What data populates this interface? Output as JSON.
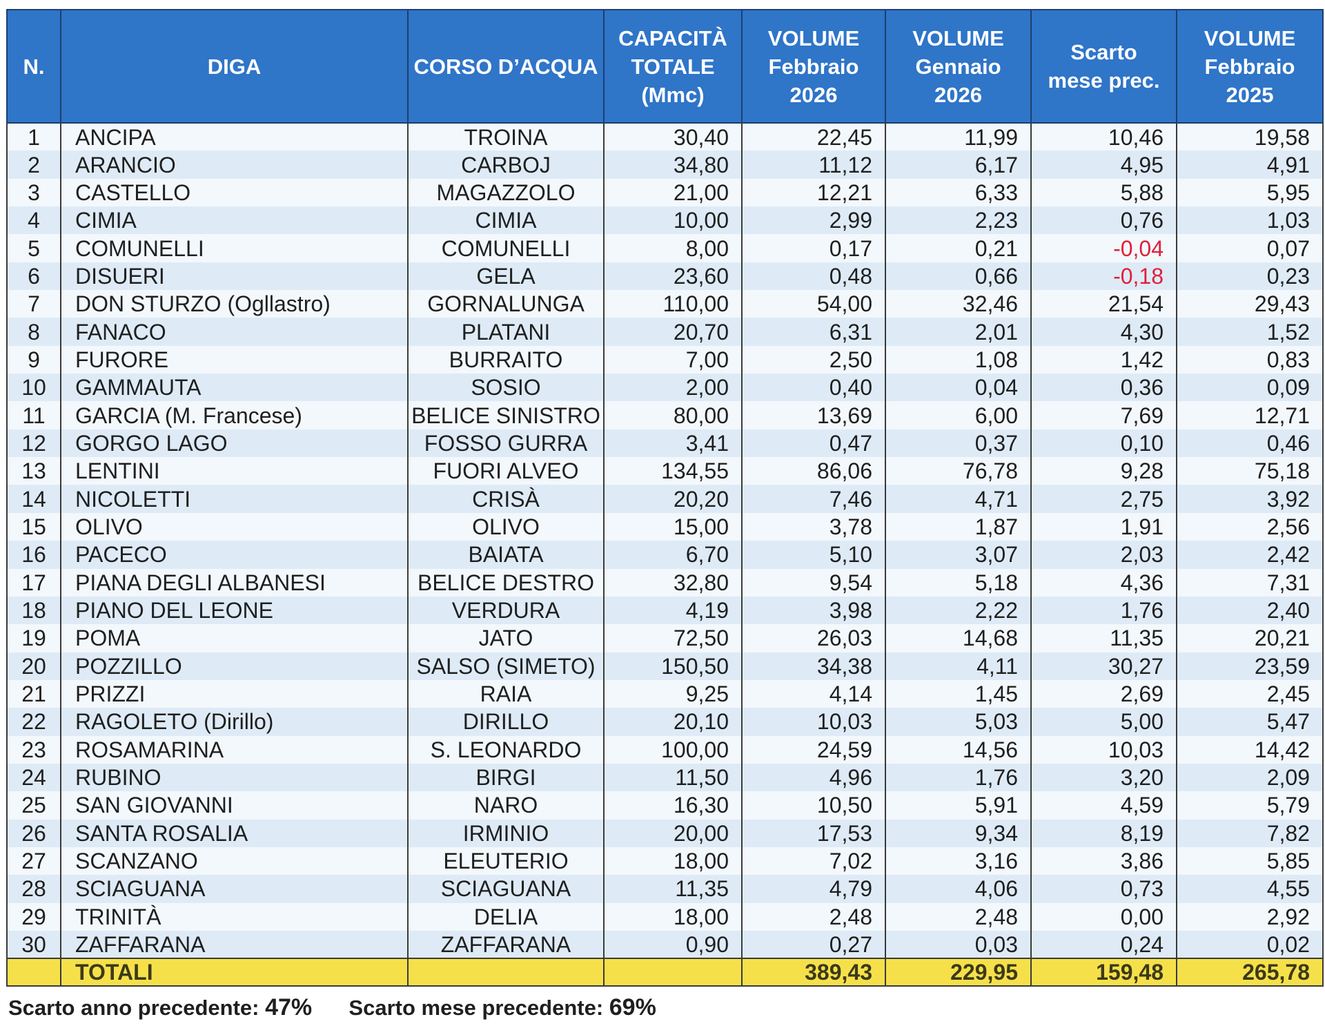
{
  "headers": {
    "n": "N.",
    "diga": "DIGA",
    "corso": "CORSO D’ACQUA",
    "capacita": [
      "CAPACITÀ",
      "TOTALE",
      "(Mmc)"
    ],
    "vol_feb_2026": [
      "VOLUME",
      "Febbraio",
      "2026"
    ],
    "vol_gen_2026": [
      "VOLUME",
      "Gennaio",
      "2026"
    ],
    "scarto": [
      "Scarto",
      "mese prec."
    ],
    "vol_feb_2025": [
      "VOLUME",
      "Febbraio",
      "2025"
    ]
  },
  "rows": [
    {
      "n": "1",
      "diga": "ANCIPA",
      "corso": "TROINA",
      "capacita": "30,40",
      "feb26": "22,45",
      "gen26": "11,99",
      "scarto": "10,46",
      "feb25": "19,58"
    },
    {
      "n": "2",
      "diga": "ARANCIO",
      "corso": "CARBOJ",
      "capacita": "34,80",
      "feb26": "11,12",
      "gen26": "6,17",
      "scarto": "4,95",
      "feb25": "4,91"
    },
    {
      "n": "3",
      "diga": "CASTELLO",
      "corso": "MAGAZZOLO",
      "capacita": "21,00",
      "feb26": "12,21",
      "gen26": "6,33",
      "scarto": "5,88",
      "feb25": "5,95"
    },
    {
      "n": "4",
      "diga": "CIMIA",
      "corso": "CIMIA",
      "capacita": "10,00",
      "feb26": "2,99",
      "gen26": "2,23",
      "scarto": "0,76",
      "feb25": "1,03"
    },
    {
      "n": "5",
      "diga": "COMUNELLI",
      "corso": "COMUNELLI",
      "capacita": "8,00",
      "feb26": "0,17",
      "gen26": "0,21",
      "scarto": "-0,04",
      "feb25": "0,07"
    },
    {
      "n": "6",
      "diga": "DISUERI",
      "corso": "GELA",
      "capacita": "23,60",
      "feb26": "0,48",
      "gen26": "0,66",
      "scarto": "-0,18",
      "feb25": "0,23"
    },
    {
      "n": "7",
      "diga": "DON STURZO (Ogllastro)",
      "corso": "GORNALUNGA",
      "capacita": "110,00",
      "feb26": "54,00",
      "gen26": "32,46",
      "scarto": "21,54",
      "feb25": "29,43"
    },
    {
      "n": "8",
      "diga": "FANACO",
      "corso": "PLATANI",
      "capacita": "20,70",
      "feb26": "6,31",
      "gen26": "2,01",
      "scarto": "4,30",
      "feb25": "1,52"
    },
    {
      "n": "9",
      "diga": "FURORE",
      "corso": "BURRAITO",
      "capacita": "7,00",
      "feb26": "2,50",
      "gen26": "1,08",
      "scarto": "1,42",
      "feb25": "0,83"
    },
    {
      "n": "10",
      "diga": "GAMMAUTA",
      "corso": "SOSIO",
      "capacita": "2,00",
      "feb26": "0,40",
      "gen26": "0,04",
      "scarto": "0,36",
      "feb25": "0,09"
    },
    {
      "n": "11",
      "diga": "GARCIA (M. Francese)",
      "corso": "BELICE SINISTRO",
      "capacita": "80,00",
      "feb26": "13,69",
      "gen26": "6,00",
      "scarto": "7,69",
      "feb25": "12,71"
    },
    {
      "n": "12",
      "diga": "GORGO LAGO",
      "corso": "FOSSO GURRA",
      "capacita": "3,41",
      "feb26": "0,47",
      "gen26": "0,37",
      "scarto": "0,10",
      "feb25": "0,46"
    },
    {
      "n": "13",
      "diga": "LENTINI",
      "corso": "FUORI ALVEO",
      "capacita": "134,55",
      "feb26": "86,06",
      "gen26": "76,78",
      "scarto": "9,28",
      "feb25": "75,18"
    },
    {
      "n": "14",
      "diga": "NICOLETTI",
      "corso": "CRISÀ",
      "capacita": "20,20",
      "feb26": "7,46",
      "gen26": "4,71",
      "scarto": "2,75",
      "feb25": "3,92"
    },
    {
      "n": "15",
      "diga": "OLIVO",
      "corso": "OLIVO",
      "capacita": "15,00",
      "feb26": "3,78",
      "gen26": "1,87",
      "scarto": "1,91",
      "feb25": "2,56"
    },
    {
      "n": "16",
      "diga": "PACECO",
      "corso": "BAIATA",
      "capacita": "6,70",
      "feb26": "5,10",
      "gen26": "3,07",
      "scarto": "2,03",
      "feb25": "2,42"
    },
    {
      "n": "17",
      "diga": "PIANA DEGLI ALBANESI",
      "corso": "BELICE DESTRO",
      "capacita": "32,80",
      "feb26": "9,54",
      "gen26": "5,18",
      "scarto": "4,36",
      "feb25": "7,31"
    },
    {
      "n": "18",
      "diga": "PIANO DEL LEONE",
      "corso": "VERDURA",
      "capacita": "4,19",
      "feb26": "3,98",
      "gen26": "2,22",
      "scarto": "1,76",
      "feb25": "2,40"
    },
    {
      "n": "19",
      "diga": "POMA",
      "corso": "JATO",
      "capacita": "72,50",
      "feb26": "26,03",
      "gen26": "14,68",
      "scarto": "11,35",
      "feb25": "20,21"
    },
    {
      "n": "20",
      "diga": "POZZILLO",
      "corso": "SALSO (SIMETO)",
      "capacita": "150,50",
      "feb26": "34,38",
      "gen26": "4,11",
      "scarto": "30,27",
      "feb25": "23,59"
    },
    {
      "n": "21",
      "diga": "PRIZZI",
      "corso": "RAIA",
      "capacita": "9,25",
      "feb26": "4,14",
      "gen26": "1,45",
      "scarto": "2,69",
      "feb25": "2,45"
    },
    {
      "n": "22",
      "diga": "RAGOLETO (Dirillo)",
      "corso": "DIRILLO",
      "capacita": "20,10",
      "feb26": "10,03",
      "gen26": "5,03",
      "scarto": "5,00",
      "feb25": "5,47"
    },
    {
      "n": "23",
      "diga": "ROSAMARINA",
      "corso": "S. LEONARDO",
      "capacita": "100,00",
      "feb26": "24,59",
      "gen26": "14,56",
      "scarto": "10,03",
      "feb25": "14,42"
    },
    {
      "n": "24",
      "diga": "RUBINO",
      "corso": "BIRGI",
      "capacita": "11,50",
      "feb26": "4,96",
      "gen26": "1,76",
      "scarto": "3,20",
      "feb25": "2,09"
    },
    {
      "n": "25",
      "diga": "SAN GIOVANNI",
      "corso": "NARO",
      "capacita": "16,30",
      "feb26": "10,50",
      "gen26": "5,91",
      "scarto": "4,59",
      "feb25": "5,79"
    },
    {
      "n": "26",
      "diga": "SANTA ROSALIA",
      "corso": "IRMINIO",
      "capacita": "20,00",
      "feb26": "17,53",
      "gen26": "9,34",
      "scarto": "8,19",
      "feb25": "7,82"
    },
    {
      "n": "27",
      "diga": "SCANZANO",
      "corso": "ELEUTERIO",
      "capacita": "18,00",
      "feb26": "7,02",
      "gen26": "3,16",
      "scarto": "3,86",
      "feb25": "5,85"
    },
    {
      "n": "28",
      "diga": "SCIAGUANA",
      "corso": "SCIAGUANA",
      "capacita": "11,35",
      "feb26": "4,79",
      "gen26": "4,06",
      "scarto": "0,73",
      "feb25": "4,55"
    },
    {
      "n": "29",
      "diga": "TRINITÀ",
      "corso": "DELIA",
      "capacita": "18,00",
      "feb26": "2,48",
      "gen26": "2,48",
      "scarto": "0,00",
      "feb25": "2,92"
    },
    {
      "n": "30",
      "diga": "ZAFFARANA",
      "corso": "ZAFFARANA",
      "capacita": "0,90",
      "feb26": "0,27",
      "gen26": "0,03",
      "scarto": "0,24",
      "feb25": "0,02"
    }
  ],
  "totals": {
    "label": "TOTALI",
    "feb26": "389,43",
    "gen26": "229,95",
    "scarto": "159,48",
    "feb25": "265,78"
  },
  "footer": {
    "anno_label": "Scarto anno precedente:",
    "anno_value": "47%",
    "mese_label": "Scarto mese precedente:",
    "mese_value": "69%"
  },
  "colors": {
    "header_bg": "#2f75c8",
    "row_light": "#f3f8fc",
    "row_dark": "#deebf6",
    "totals_bg": "#f6e04a",
    "negative": "#e0203c"
  }
}
